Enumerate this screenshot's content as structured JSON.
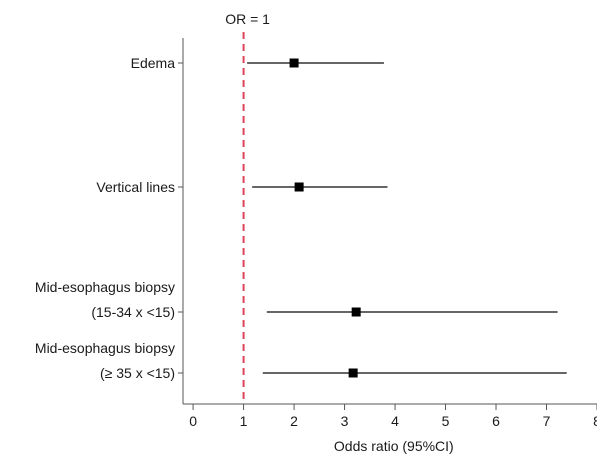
{
  "chart_data": {
    "type": "forest",
    "title": "",
    "xlabel": "Odds ratio (95%CI)",
    "ylabel": "",
    "xlim": [
      -0.2,
      8
    ],
    "xticks": [
      "0",
      "1",
      "2",
      "3",
      "4",
      "5",
      "6",
      "7",
      "8"
    ],
    "reference_line": {
      "value": 1,
      "label": "OR = 1",
      "color": "#e0435a",
      "style": "dashed"
    },
    "marker_color": "#000000",
    "line_color": "#333333",
    "rows": [
      {
        "label_lines": [
          "Edema"
        ],
        "or": 2.0,
        "ci_low": 1.07,
        "ci_high": 3.78
      },
      {
        "label_lines": [
          "Vertical lines"
        ],
        "or": 2.1,
        "ci_low": 1.17,
        "ci_high": 3.85
      },
      {
        "label_lines": [
          "Mid-esophagus biopsy",
          "(15-34 x <15)"
        ],
        "or": 3.23,
        "ci_low": 1.46,
        "ci_high": 7.22
      },
      {
        "label_lines": [
          "Mid-esophagus biopsy",
          "(≥ 35 x <15)"
        ],
        "or": 3.17,
        "ci_low": 1.38,
        "ci_high": 7.4
      }
    ]
  }
}
